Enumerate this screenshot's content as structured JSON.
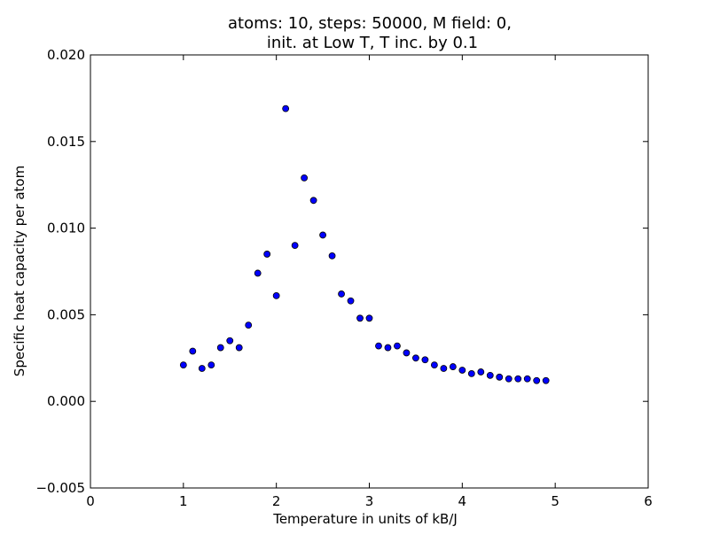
{
  "colors": {
    "marker_fill": "#0000ff",
    "marker_edge": "#000000",
    "axes": "#000000",
    "background": "#ffffff"
  },
  "chart_data": {
    "type": "scatter",
    "title": "atoms: 10, steps: 50000, M field: 0,",
    "subtitle": "init. at Low T, T inc. by 0.1",
    "xlabel": "Temperature in units of kB/J",
    "ylabel": "Specific heat capacity per atom",
    "xlim": [
      0,
      6
    ],
    "ylim": [
      -0.005,
      0.02
    ],
    "xticks": [
      0,
      1,
      2,
      3,
      4,
      5,
      6
    ],
    "xtick_labels": [
      "0",
      "1",
      "2",
      "3",
      "4",
      "5",
      "6"
    ],
    "yticks": [
      -0.005,
      0.0,
      0.005,
      0.01,
      0.015,
      0.02
    ],
    "ytick_labels": [
      "−0.005",
      "0.000",
      "0.005",
      "0.010",
      "0.015",
      "0.020"
    ],
    "grid": false,
    "legend": "none",
    "series": [
      {
        "x": [
          1.0,
          1.1,
          1.2,
          1.3,
          1.4,
          1.5,
          1.6,
          1.7,
          1.8,
          1.9,
          2.0,
          2.1,
          2.2,
          2.3,
          2.4,
          2.5,
          2.6,
          2.7,
          2.8,
          2.9,
          3.0,
          3.1,
          3.2,
          3.3,
          3.4,
          3.5,
          3.6,
          3.7,
          3.8,
          3.9,
          4.0,
          4.1,
          4.2,
          4.3,
          4.4,
          4.5,
          4.6,
          4.7,
          4.8,
          4.9
        ],
        "y": [
          0.0021,
          0.0029,
          0.0019,
          0.0021,
          0.0031,
          0.0035,
          0.0031,
          0.0044,
          0.0074,
          0.0085,
          0.0061,
          0.0169,
          0.009,
          0.0129,
          0.0116,
          0.0096,
          0.0084,
          0.0062,
          0.0058,
          0.0048,
          0.0048,
          0.0032,
          0.0031,
          0.0032,
          0.0028,
          0.0025,
          0.0024,
          0.0021,
          0.0019,
          0.002,
          0.0018,
          0.0016,
          0.0017,
          0.0015,
          0.0014,
          0.0013,
          0.0013,
          0.0013,
          0.0012,
          0.0012
        ]
      }
    ]
  }
}
